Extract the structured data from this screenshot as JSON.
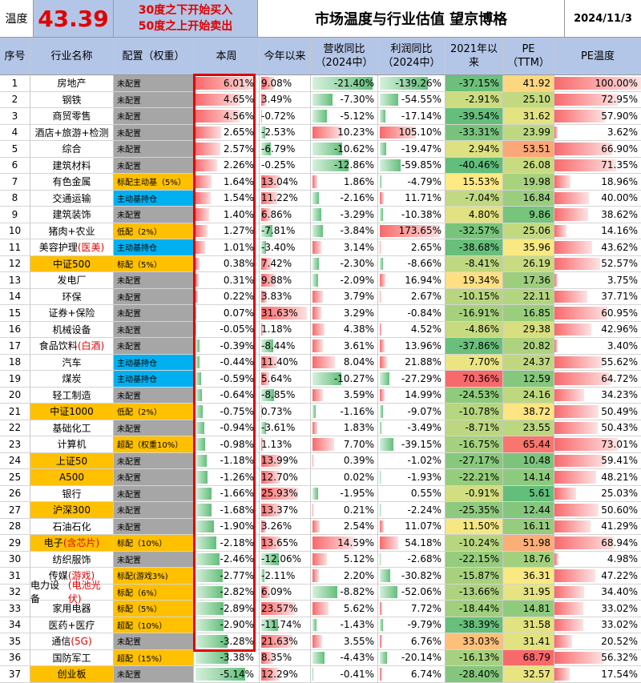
{
  "header_bar": {
    "label": "温度",
    "value": "43.39",
    "note_line1": "30度之下开始买入",
    "note_line2": "50度之上开始卖出",
    "title": "市场温度与行业估值 望京博格",
    "date": "2024/11/3"
  },
  "columns": [
    "序号",
    "行业名称",
    "配置（权重）",
    "本周",
    "今年以来",
    "营收同比\n（2024中）",
    "利润同比\n（2024中）",
    "2021年以\n来",
    "PE\n（TTM）",
    "PE温度"
  ],
  "colors": {
    "header_bg": "#b4c6e7",
    "alloc_gray": "#a6a6a6",
    "alloc_blue": "#00b0f0",
    "alloc_yellow": "#ffc000",
    "red_text": "#e00000",
    "bar_green": "#63be7b",
    "bar_red": "#f8696b"
  },
  "rows": [
    {
      "n": "1",
      "name": "房地产",
      "alloc": "未配置",
      "alloc_color": "gray",
      "week": "6.01%",
      "ytd": "9.08%",
      "rev": "-21.40%",
      "profit": "-139.26%",
      "since2021": "-37.15%",
      "pe": "41.92",
      "pe_temp": "100.00%"
    },
    {
      "n": "2",
      "name": "钢铁",
      "alloc": "未配置",
      "alloc_color": "gray",
      "week": "4.65%",
      "ytd": "3.49%",
      "rev": "-7.30%",
      "profit": "-54.55%",
      "since2021": "-2.91%",
      "pe": "25.10",
      "pe_temp": "72.95%"
    },
    {
      "n": "3",
      "name": "商贸零售",
      "alloc": "未配置",
      "alloc_color": "gray",
      "week": "4.56%",
      "ytd": "-0.72%",
      "rev": "-5.12%",
      "profit": "-17.14%",
      "since2021": "-39.54%",
      "pe": "31.62",
      "pe_temp": "57.90%"
    },
    {
      "n": "4",
      "name": "酒店+旅游+检测",
      "alloc": "未配置",
      "alloc_color": "gray",
      "week": "2.65%",
      "ytd": "-2.53%",
      "rev": "10.23%",
      "profit": "105.10%",
      "since2021": "-33.31%",
      "pe": "23.99",
      "pe_temp": "3.62%"
    },
    {
      "n": "5",
      "name": "综合",
      "alloc": "未配置",
      "alloc_color": "gray",
      "week": "2.57%",
      "ytd": "-6.79%",
      "rev": "-10.62%",
      "profit": "-19.47%",
      "since2021": "2.94%",
      "pe": "53.51",
      "pe_temp": "66.90%"
    },
    {
      "n": "6",
      "name": "建筑材料",
      "alloc": "未配置",
      "alloc_color": "gray",
      "week": "2.26%",
      "ytd": "-0.25%",
      "rev": "-12.86%",
      "profit": "-59.85%",
      "since2021": "-40.46%",
      "pe": "26.08",
      "pe_temp": "71.35%"
    },
    {
      "n": "7",
      "name": "有色金属",
      "alloc": "标配主动基（5%）",
      "alloc_color": "yellow",
      "week": "1.64%",
      "ytd": "13.04%",
      "rev": "1.86%",
      "profit": "-4.79%",
      "since2021": "15.53%",
      "pe": "19.98",
      "pe_temp": "18.96%"
    },
    {
      "n": "8",
      "name": "交通运输",
      "alloc": "主动基持仓",
      "alloc_color": "blue",
      "week": "1.54%",
      "ytd": "11.22%",
      "rev": "-2.16%",
      "profit": "11.71%",
      "since2021": "-7.04%",
      "pe": "16.84",
      "pe_temp": "40.00%"
    },
    {
      "n": "9",
      "name": "建筑装饰",
      "alloc": "未配置",
      "alloc_color": "gray",
      "week": "1.40%",
      "ytd": "6.86%",
      "rev": "-3.29%",
      "profit": "-10.38%",
      "since2021": "4.80%",
      "pe": "9.86",
      "pe_temp": "38.62%"
    },
    {
      "n": "10",
      "name": "猪肉+农业",
      "alloc": "低配（2%）",
      "alloc_color": "yellow",
      "week": "1.27%",
      "ytd": "-7.81%",
      "rev": "-3.84%",
      "profit": "173.65%",
      "since2021": "-32.57%",
      "pe": "25.06",
      "pe_temp": "14.16%"
    },
    {
      "n": "11",
      "name": "美容护理",
      "name_red": "(医美)",
      "alloc": "主动基持仓",
      "alloc_color": "blue",
      "week": "1.01%",
      "ytd": "-3.40%",
      "rev": "3.14%",
      "profit": "2.65%",
      "since2021": "-38.68%",
      "pe": "35.96",
      "pe_temp": "43.62%"
    },
    {
      "n": "12",
      "name": "中证500",
      "name_bg": "yellow",
      "alloc": "标配（5%）",
      "alloc_color": "yellow",
      "week": "0.38%",
      "ytd": "7.42%",
      "rev": "-2.30%",
      "profit": "-8.66%",
      "since2021": "-8.41%",
      "pe": "26.19",
      "pe_temp": "52.57%"
    },
    {
      "n": "13",
      "name": "发电厂",
      "alloc": "未配置",
      "alloc_color": "gray",
      "week": "0.31%",
      "ytd": "9.88%",
      "rev": "-2.09%",
      "profit": "16.94%",
      "since2021": "19.34%",
      "pe": "17.36",
      "pe_temp": "3.75%"
    },
    {
      "n": "14",
      "name": "环保",
      "alloc": "未配置",
      "alloc_color": "gray",
      "week": "0.22%",
      "ytd": "3.83%",
      "rev": "3.79%",
      "profit": "2.67%",
      "since2021": "-10.15%",
      "pe": "22.11",
      "pe_temp": "37.71%"
    },
    {
      "n": "15",
      "name": "证券+保险",
      "alloc": "未配置",
      "alloc_color": "gray",
      "week": "0.07%",
      "ytd": "31.63%",
      "rev": "3.29%",
      "profit": "-0.84%",
      "since2021": "-16.91%",
      "pe": "16.85",
      "pe_temp": "60.95%"
    },
    {
      "n": "16",
      "name": "机械设备",
      "alloc": "未配置",
      "alloc_color": "gray",
      "week": "-0.05%",
      "ytd": "1.18%",
      "rev": "4.38%",
      "profit": "4.52%",
      "since2021": "-4.86%",
      "pe": "29.38",
      "pe_temp": "42.96%"
    },
    {
      "n": "17",
      "name": "食品饮料",
      "name_red": "(白酒)",
      "alloc": "未配置",
      "alloc_color": "gray",
      "week": "-0.39%",
      "ytd": "-8.44%",
      "rev": "3.61%",
      "profit": "13.96%",
      "since2021": "-37.86%",
      "pe": "20.82",
      "pe_temp": "3.40%"
    },
    {
      "n": "18",
      "name": "汽车",
      "alloc": "主动基持仓",
      "alloc_color": "blue",
      "week": "-0.44%",
      "ytd": "11.40%",
      "rev": "8.04%",
      "profit": "21.88%",
      "since2021": "7.70%",
      "pe": "24.37",
      "pe_temp": "55.62%"
    },
    {
      "n": "19",
      "name": "煤炭",
      "alloc": "主动基持仓",
      "alloc_color": "blue",
      "week": "-0.59%",
      "ytd": "5.64%",
      "rev": "-10.27%",
      "profit": "-27.29%",
      "since2021": "70.36%",
      "pe": "12.59",
      "pe_temp": "64.72%"
    },
    {
      "n": "20",
      "name": "轻工制造",
      "alloc": "未配置",
      "alloc_color": "gray",
      "week": "-0.64%",
      "ytd": "-8.85%",
      "rev": "3.59%",
      "profit": "14.99%",
      "since2021": "-24.53%",
      "pe": "24.16",
      "pe_temp": "34.23%"
    },
    {
      "n": "21",
      "name": "中证1000",
      "name_bg": "yellow",
      "alloc": "低配（2%）",
      "alloc_color": "yellow",
      "week": "-0.75%",
      "ytd": "0.73%",
      "rev": "-1.16%",
      "profit": "-9.07%",
      "since2021": "-10.78%",
      "pe": "38.72",
      "pe_temp": "50.49%"
    },
    {
      "n": "22",
      "name": "基础化工",
      "alloc": "未配置",
      "alloc_color": "gray",
      "week": "-0.94%",
      "ytd": "-3.61%",
      "rev": "1.83%",
      "profit": "-3.49%",
      "since2021": "-8.71%",
      "pe": "23.55",
      "pe_temp": "50.43%"
    },
    {
      "n": "23",
      "name": "计算机",
      "alloc": "超配（权重10%）",
      "alloc_color": "yellow",
      "week": "-0.98%",
      "ytd": "1.13%",
      "rev": "7.70%",
      "profit": "-39.15%",
      "since2021": "-16.75%",
      "pe": "65.44",
      "pe_temp": "73.01%"
    },
    {
      "n": "24",
      "name": "上证50",
      "name_bg": "yellow",
      "alloc": "未配置",
      "alloc_color": "gray",
      "week": "-1.18%",
      "ytd": "13.99%",
      "rev": "0.39%",
      "profit": "-1.02%",
      "since2021": "-27.17%",
      "pe": "10.48",
      "pe_temp": "59.41%"
    },
    {
      "n": "25",
      "name": "A500",
      "name_bg": "yellow",
      "alloc": "未配置",
      "alloc_color": "gray",
      "week": "-1.26%",
      "ytd": "12.70%",
      "rev": "0.02%",
      "profit": "-1.93%",
      "since2021": "-22.21%",
      "pe": "14.14",
      "pe_temp": "48.21%"
    },
    {
      "n": "26",
      "name": "银行",
      "alloc": "未配置",
      "alloc_color": "gray",
      "week": "-1.66%",
      "ytd": "25.93%",
      "rev": "-1.95%",
      "profit": "0.55%",
      "since2021": "-0.91%",
      "pe": "5.61",
      "pe_temp": "25.03%"
    },
    {
      "n": "27",
      "name": "沪深300",
      "name_bg": "yellow",
      "alloc": "未配置",
      "alloc_color": "gray",
      "week": "-1.68%",
      "ytd": "13.37%",
      "rev": "0.21%",
      "profit": "-2.24%",
      "since2021": "-25.35%",
      "pe": "12.44",
      "pe_temp": "50.60%"
    },
    {
      "n": "28",
      "name": "石油石化",
      "alloc": "未配置",
      "alloc_color": "gray",
      "week": "-1.90%",
      "ytd": "3.26%",
      "rev": "2.54%",
      "profit": "11.07%",
      "since2021": "11.50%",
      "pe": "16.11",
      "pe_temp": "41.29%"
    },
    {
      "n": "29",
      "name": "电子",
      "name_red": "(含芯片)",
      "name_bg": "yellow",
      "alloc": "标配（10%）",
      "alloc_color": "yellow",
      "week": "-2.18%",
      "ytd": "13.65%",
      "rev": "14.59%",
      "profit": "54.18%",
      "since2021": "-10.24%",
      "pe": "51.98",
      "pe_temp": "68.94%"
    },
    {
      "n": "30",
      "name": "纺织服饰",
      "alloc": "未配置",
      "alloc_color": "gray",
      "week": "-2.46%",
      "ytd": "-12.06%",
      "rev": "5.12%",
      "profit": "-2.68%",
      "since2021": "-22.15%",
      "pe": "18.76",
      "pe_temp": "4.98%"
    },
    {
      "n": "31",
      "name": "传媒",
      "name_red": "(游戏)",
      "alloc": "标配(游戏3%)",
      "alloc_color": "yellow",
      "week": "-2.77%",
      "ytd": "-2.11%",
      "rev": "2.20%",
      "profit": "-30.82%",
      "since2021": "-15.87%",
      "pe": "36.31",
      "pe_temp": "47.22%"
    },
    {
      "n": "32",
      "name": "电力设备",
      "name_red": "(电池光伏)",
      "alloc": "标配（6%）",
      "alloc_color": "yellow",
      "week": "-2.82%",
      "ytd": "6.09%",
      "rev": "-8.82%",
      "profit": "-52.06%",
      "since2021": "-13.66%",
      "pe": "31.95",
      "pe_temp": "34.40%"
    },
    {
      "n": "33",
      "name": "家用电器",
      "alloc": "标配（5%）",
      "alloc_color": "yellow",
      "week": "-2.89%",
      "ytd": "23.57%",
      "rev": "5.62%",
      "profit": "7.72%",
      "since2021": "-18.44%",
      "pe": "14.81",
      "pe_temp": "33.02%"
    },
    {
      "n": "34",
      "name": "医药+医疗",
      "alloc": "超配（10%）",
      "alloc_color": "yellow",
      "week": "-2.90%",
      "ytd": "-11.74%",
      "rev": "-1.43%",
      "profit": "-9.79%",
      "since2021": "-38.39%",
      "pe": "31.58",
      "pe_temp": "33.02%"
    },
    {
      "n": "35",
      "name": "通信",
      "name_red": "(5G)",
      "alloc": "未配置",
      "alloc_color": "gray",
      "week": "-3.28%",
      "ytd": "21.63%",
      "rev": "3.55%",
      "profit": "6.76%",
      "since2021": "33.03%",
      "pe": "31.41",
      "pe_temp": "20.52%"
    },
    {
      "n": "36",
      "name": "国防军工",
      "alloc": "超配（15%）",
      "alloc_color": "yellow",
      "week": "-3.38%",
      "ytd": "8.35%",
      "rev": "-4.43%",
      "profit": "-20.14%",
      "since2021": "-16.13%",
      "pe": "68.79",
      "pe_temp": "56.32%"
    },
    {
      "n": "37",
      "name": "创业板",
      "name_bg": "yellow",
      "alloc": "未配置",
      "alloc_color": "gray",
      "week": "-5.14%",
      "ytd": "12.29%",
      "rev": "-0.41%",
      "profit": "6.74%",
      "since2021": "-28.40%",
      "pe": "32.57",
      "pe_temp": "17.54%"
    }
  ]
}
